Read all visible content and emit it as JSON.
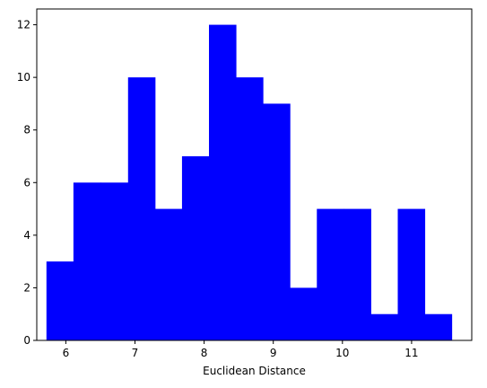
{
  "chart_data": {
    "type": "bar",
    "subtype": "histogram",
    "xlabel": "Euclidean Distance",
    "ylabel": "",
    "title": "",
    "bar_color": "#0000ff",
    "xlim": [
      5.58,
      11.87
    ],
    "ylim": [
      0,
      12.6
    ],
    "xticks": [
      6,
      7,
      8,
      9,
      10,
      11
    ],
    "yticks": [
      0,
      2,
      4,
      6,
      8,
      10,
      12
    ],
    "grid": false,
    "legend": "none",
    "bins": [
      {
        "x0": 5.72,
        "x1": 6.11,
        "value": 3
      },
      {
        "x0": 6.11,
        "x1": 6.5,
        "value": 6
      },
      {
        "x0": 6.5,
        "x1": 6.9,
        "value": 6
      },
      {
        "x0": 6.9,
        "x1": 7.29,
        "value": 10
      },
      {
        "x0": 7.29,
        "x1": 7.68,
        "value": 5
      },
      {
        "x0": 7.68,
        "x1": 8.07,
        "value": 7
      },
      {
        "x0": 8.07,
        "x1": 8.46,
        "value": 12
      },
      {
        "x0": 8.46,
        "x1": 8.85,
        "value": 10
      },
      {
        "x0": 8.85,
        "x1": 9.24,
        "value": 9
      },
      {
        "x0": 9.24,
        "x1": 9.63,
        "value": 2
      },
      {
        "x0": 9.63,
        "x1": 10.02,
        "value": 5
      },
      {
        "x0": 10.02,
        "x1": 10.41,
        "value": 5
      },
      {
        "x0": 10.41,
        "x1": 10.8,
        "value": 1
      },
      {
        "x0": 10.8,
        "x1": 11.19,
        "value": 5
      },
      {
        "x0": 11.19,
        "x1": 11.58,
        "value": 1
      }
    ]
  }
}
